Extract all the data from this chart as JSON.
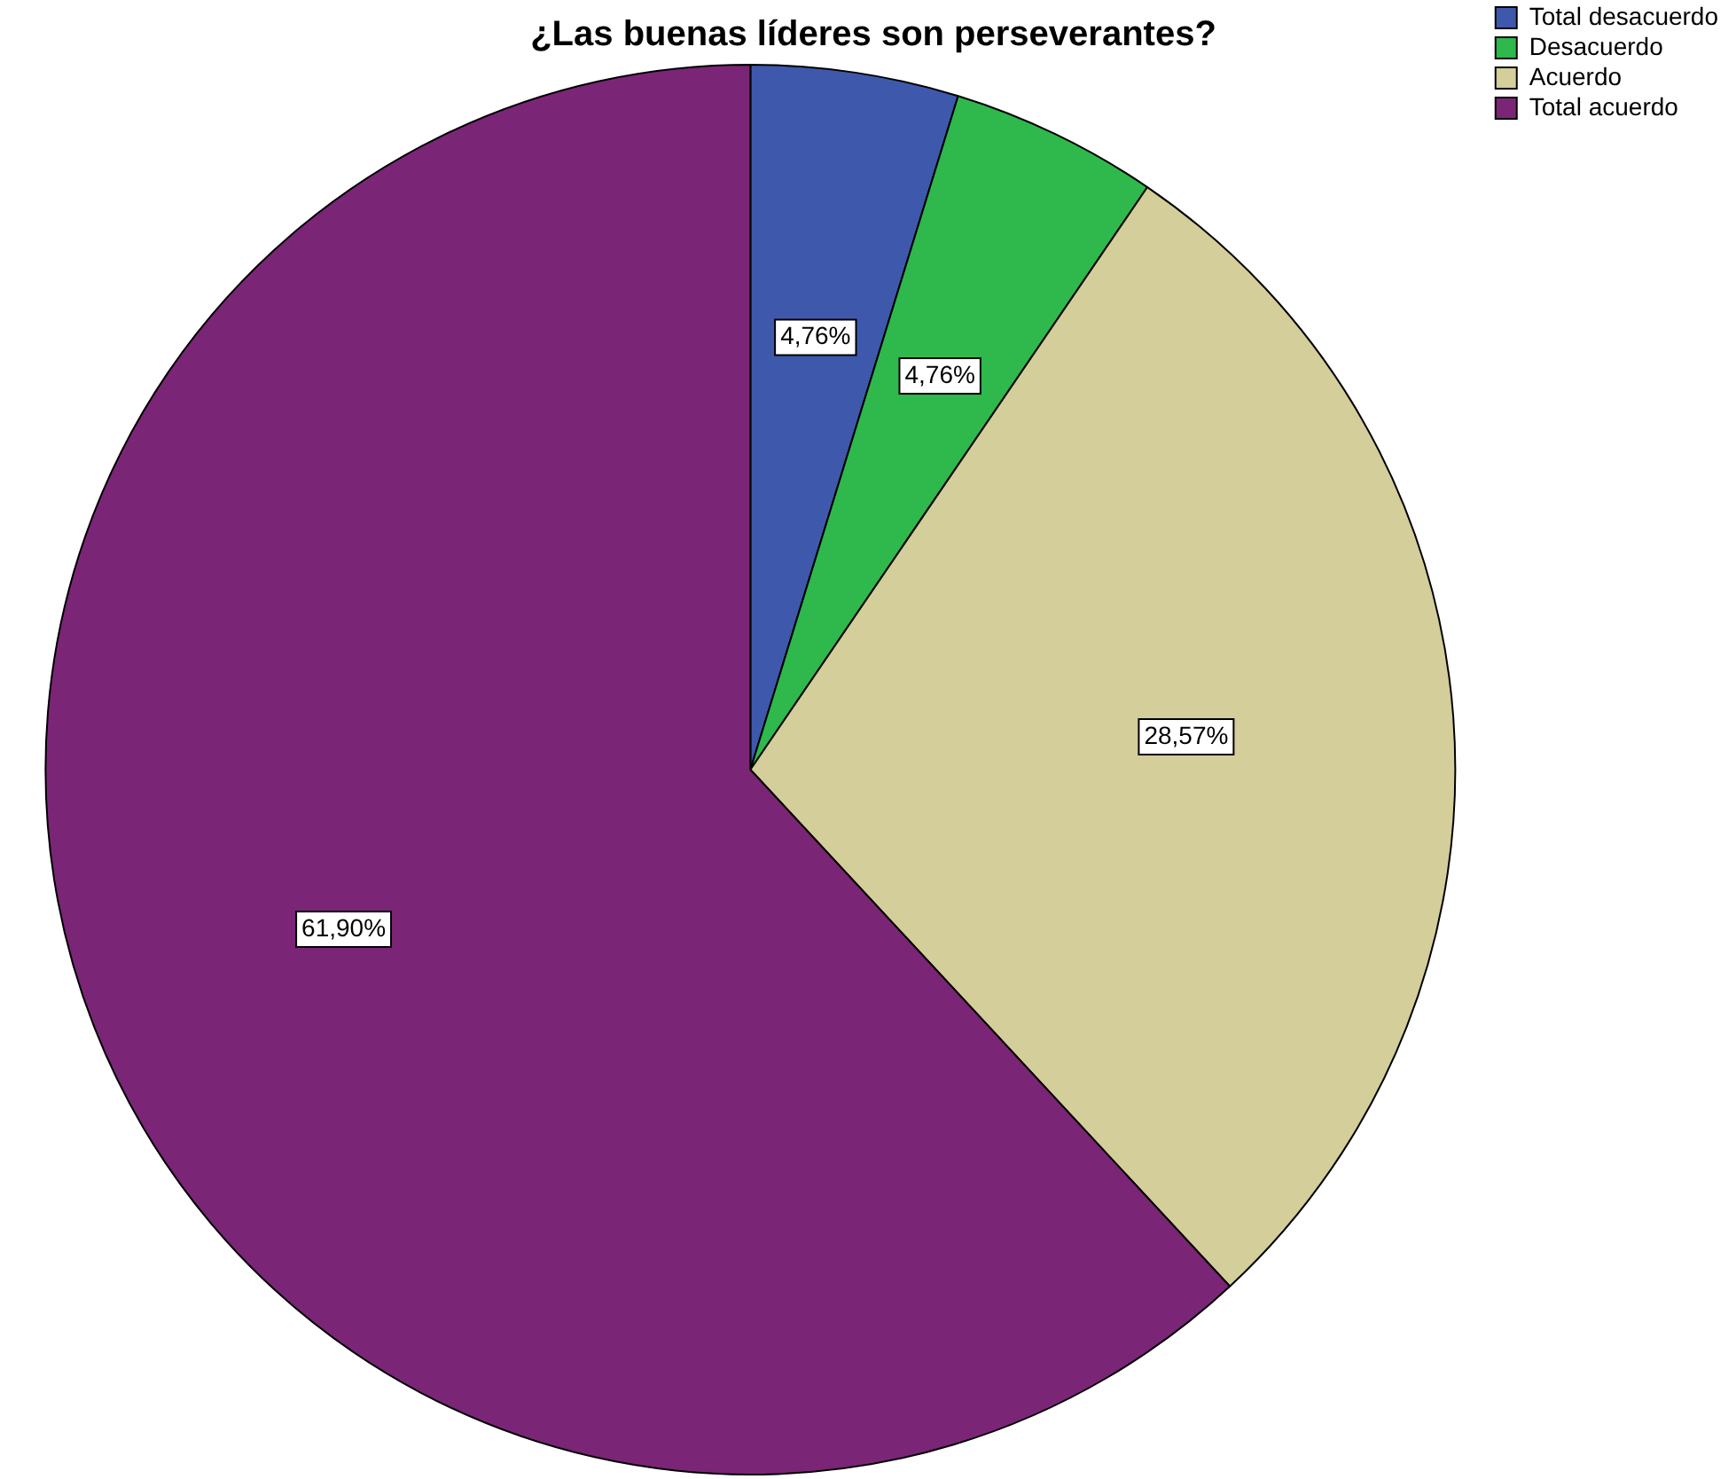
{
  "chart_data": {
    "type": "pie",
    "title": "¿Las buenas líderes son perseverantes?",
    "categories": [
      "Total desacuerdo",
      "Desacuerdo",
      "Acuerdo",
      "Total acuerdo"
    ],
    "values": [
      4.76,
      4.76,
      28.57,
      61.9
    ],
    "colors": [
      "#3e58ac",
      "#2fb84c",
      "#d3ce9a",
      "#7b2577"
    ],
    "value_labels": [
      "4,76%",
      "4,76%",
      "28,57%",
      "61,90%"
    ],
    "legend": "top right"
  }
}
